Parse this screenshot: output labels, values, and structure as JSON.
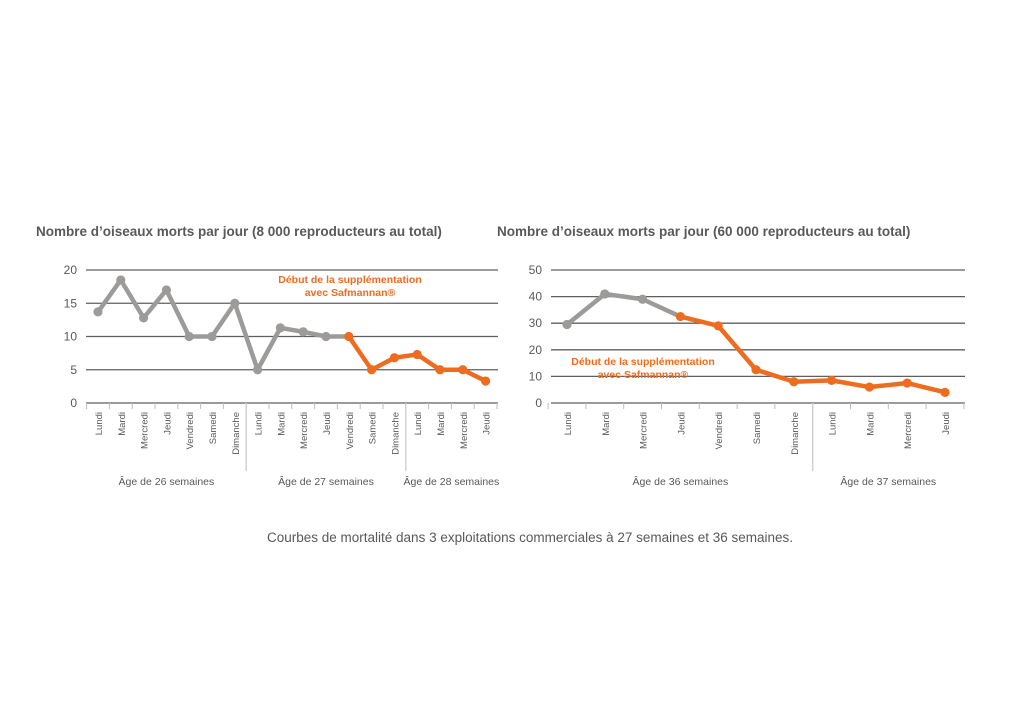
{
  "caption": "Courbes de mortalité dans 3 exploitations commerciales à 27 semaines et 36 semaines.",
  "colors": {
    "before": "#9d9b9a",
    "after": "#ee6c1f",
    "grid": "#5f5f5f",
    "text": "#58595b"
  },
  "chart_data": [
    {
      "type": "line",
      "title": "Nombre d’oiseaux morts par jour (8 000 reproducteurs au total)",
      "categories": [
        "Lundi",
        "Mardi",
        "Mercredi",
        "Jeudi",
        "Vendredi",
        "Samedi",
        "Dimanche",
        "Lundi",
        "Mardi",
        "Mercredi",
        "Jeudi",
        "Vendredi",
        "Samedi",
        "Dimanche",
        "Lundi",
        "Mardi",
        "Mercredi",
        "Jeudi"
      ],
      "values": [
        13.7,
        18.5,
        12.8,
        17,
        10,
        10,
        15,
        5,
        11.3,
        10.7,
        10,
        10,
        5,
        6.8,
        7.3,
        5,
        5,
        3.3
      ],
      "supplementation_start_index": 11,
      "yticks": [
        0,
        5,
        10,
        15,
        20
      ],
      "ylim": [
        0,
        20
      ],
      "groups": [
        {
          "label": "Âge de 26 semaines",
          "start": 0,
          "end": 6
        },
        {
          "label": "Âge de 27 semaines",
          "start": 7,
          "end": 13
        },
        {
          "label": "Âge de 28 semaines",
          "start": 14,
          "end": 17
        }
      ],
      "annotation": [
        "Début de la supplémentation",
        "avec Safmannan®"
      ]
    },
    {
      "type": "line",
      "title": "Nombre d’oiseaux morts par jour (60 000 reproducteurs au total)",
      "categories": [
        "Lundi",
        "Mardi",
        "Mercredi",
        "Jeudi",
        "Vendredi",
        "Samedi",
        "Dimanche",
        "Lundi",
        "Mardi",
        "Mercredi",
        "Jeudi"
      ],
      "values": [
        29.5,
        41,
        39,
        32.5,
        29,
        12.5,
        8,
        8.5,
        6,
        7.5,
        4
      ],
      "supplementation_start_index": 3,
      "yticks": [
        0,
        10,
        20,
        30,
        40,
        50
      ],
      "ylim": [
        0,
        50
      ],
      "groups": [
        {
          "label": "Âge de 36 semaines",
          "start": 0,
          "end": 6
        },
        {
          "label": "Âge de 37 semaines",
          "start": 7,
          "end": 10
        }
      ],
      "annotation": [
        "Début de la supplémentation",
        "avec Safmannan®"
      ]
    }
  ]
}
